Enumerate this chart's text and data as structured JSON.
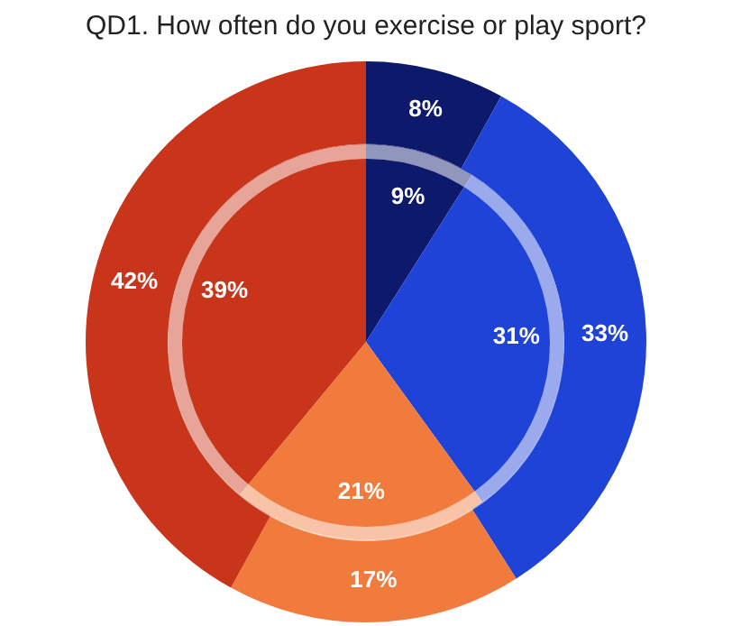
{
  "chart_data": {
    "type": "pie",
    "title": "QD1. How often do you exercise or play sport?",
    "categories": [
      null,
      null,
      null,
      null
    ],
    "colors": [
      "#0d1a6b",
      "#1f43d6",
      "#f07b3c",
      "#c9351b"
    ],
    "series": [
      {
        "values": [
          8,
          33,
          17,
          42
        ],
        "value_labels": [
          "8%",
          "33%",
          "17%",
          "42%"
        ]
      },
      {
        "values": [
          9,
          31,
          21,
          39
        ],
        "value_labels": [
          "9%",
          "31%",
          "21%",
          "39%"
        ]
      }
    ]
  }
}
